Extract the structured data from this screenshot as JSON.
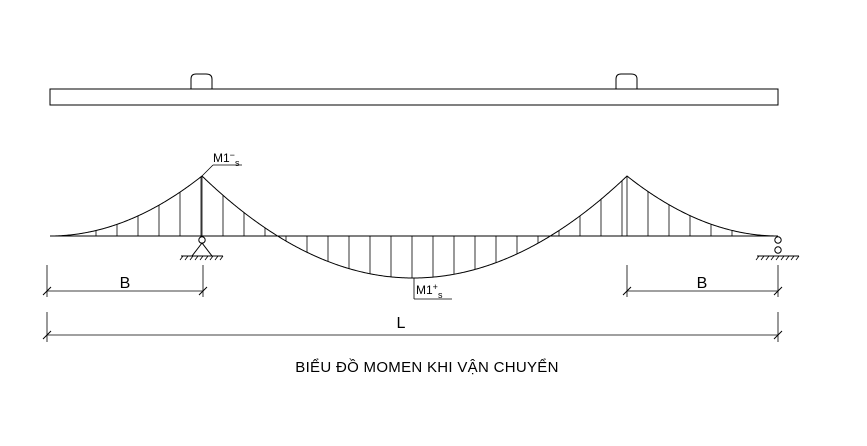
{
  "labels": {
    "m_neg": "M1",
    "m_neg_sup": "−",
    "m_neg_sub": "s",
    "m_pos": "M1",
    "m_pos_sup": "+",
    "m_pos_sub": "s",
    "dim_b_left": "B",
    "dim_b_right": "B",
    "dim_l": "L"
  },
  "caption": "BIỂU ĐỒ MOMEN KHI VẬN CHUYỂN"
}
